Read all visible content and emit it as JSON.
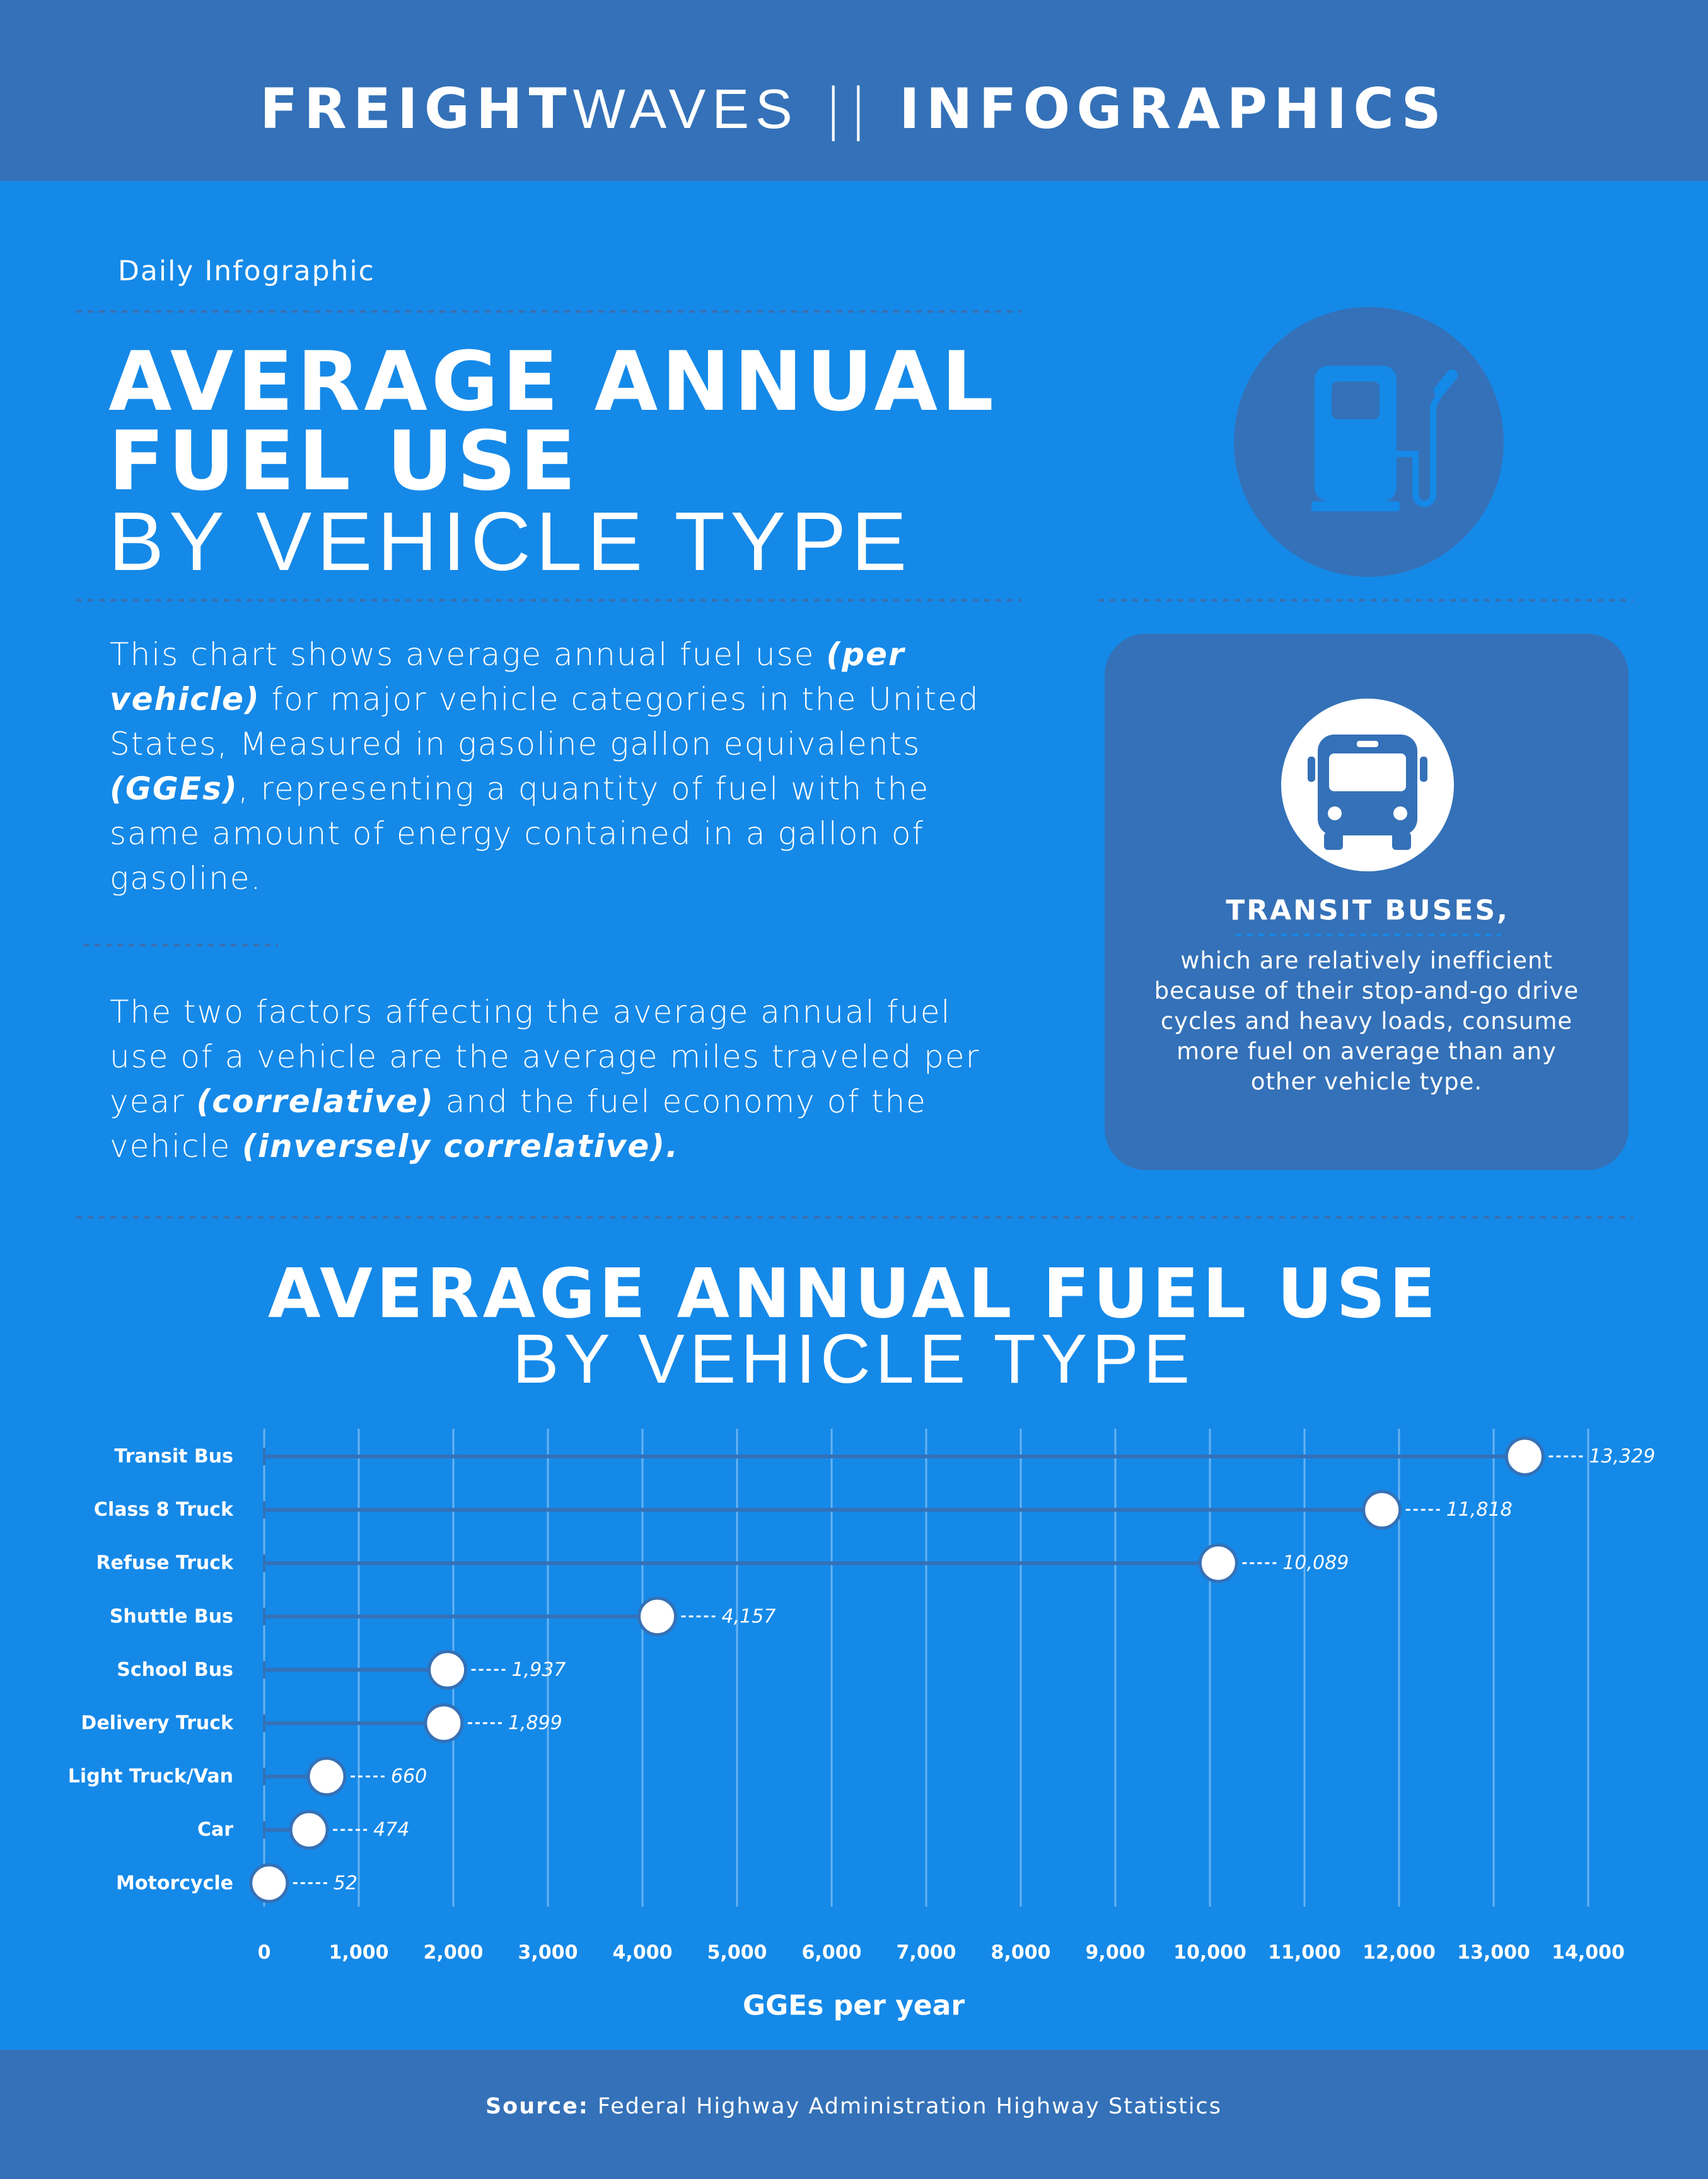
{
  "header": {
    "brand_bold": "FREIGHT",
    "brand_light": "WAVES",
    "separator": "||",
    "section": "INFOGRAPHICS"
  },
  "intro": {
    "kicker": "Daily Infographic",
    "title_line1": "AVERAGE ANNUAL",
    "title_line2": "FUEL USE",
    "title_line3": "BY VEHICLE TYPE",
    "paragraph1": [
      "This chart shows average annual fuel use ",
      "(per vehicle)",
      " for major vehicle categories in the United States, Measured in gasoline gallon equivalents ",
      "(GGEs)",
      ", representing a quantity of fuel with the same amount of energy contained in a gallon of gasoline."
    ],
    "paragraph2": [
      "The two factors affecting the average annual fuel use of a vehicle are the average miles traveled per year ",
      "(correlative)",
      " and the fuel economy of the vehicle ",
      "(inversely correlative)."
    ]
  },
  "callout": {
    "title": "TRANSIT BUSES,",
    "text": "which are relatively inefficient because of their stop-and-go drive cycles and heavy loads, consume more fuel on average than any other vehicle type."
  },
  "chart_data": {
    "type": "lollipop",
    "title": "AVERAGE ANNUAL FUEL USE",
    "subtitle": "BY VEHICLE TYPE",
    "categories": [
      "Transit Bus",
      "Class 8 Truck",
      "Refuse Truck",
      "Shuttle Bus",
      "School Bus",
      "Delivery Truck",
      "Light Truck/Van",
      "Car",
      "Motorcycle"
    ],
    "values": [
      13329,
      11818,
      10089,
      4157,
      1937,
      1899,
      660,
      474,
      52
    ],
    "value_labels": [
      "13,329",
      "11,818",
      "10,089",
      "4,157",
      "1,937",
      "1,899",
      "660",
      "474",
      "52"
    ],
    "x_label": "GGEs per year",
    "xlim": [
      0,
      14000
    ],
    "xticks": [
      0,
      {
        "value": 1000,
        "label": "1,000"
      },
      {
        "value": 2000,
        "label": "2,000"
      },
      {
        "value": 3000,
        "label": "3,000"
      },
      {
        "value": 4000,
        "label": "4,000"
      },
      {
        "value": 5000,
        "label": "5,000"
      },
      {
        "value": 6000,
        "label": "6,000"
      },
      {
        "value": 7000,
        "label": "7,000"
      },
      {
        "value": 8000,
        "label": "8,000"
      },
      {
        "value": 9000,
        "label": "9,000"
      },
      {
        "value": 10000,
        "label": "10,000"
      },
      {
        "value": 11000,
        "label": "11,000"
      },
      {
        "value": 12000,
        "label": "12,000"
      },
      {
        "value": 13000,
        "label": "13,000"
      },
      {
        "value": 14000,
        "label": "14,000"
      }
    ],
    "grid": true,
    "color": "#3471b8"
  },
  "footer": {
    "source_label": "Source:",
    "source": "Federal Highway Administration Highway Statistics"
  }
}
